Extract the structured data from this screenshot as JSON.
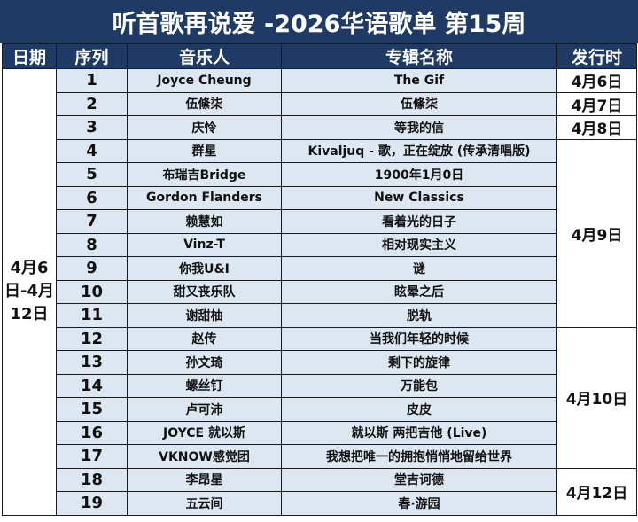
{
  "title": "听首歌再说爱 -2026华语歌单 第15周",
  "headers": {
    "date": "日期",
    "seq": "序列",
    "artist": "音乐人",
    "album": "专辑名称",
    "release": "发行时"
  },
  "week_date": "4月6日-4月12日",
  "rows": [
    {
      "seq": "1",
      "artist": "Joyce Cheung",
      "album": "The Gif"
    },
    {
      "seq": "2",
      "artist": "伍絛柒",
      "album": "伍絛柒"
    },
    {
      "seq": "3",
      "artist": "庆怜",
      "album": "等我的信"
    },
    {
      "seq": "4",
      "artist": "群星",
      "album": "Kivaljuq - 歌，正在绽放 (传承清唱版)"
    },
    {
      "seq": "5",
      "artist": "布瑞吉Bridge",
      "album": "1900年1月0日"
    },
    {
      "seq": "6",
      "artist": "Gordon Flanders",
      "album": "New Classics"
    },
    {
      "seq": "7",
      "artist": "赖慧如",
      "album": "看着光的日子"
    },
    {
      "seq": "8",
      "artist": "Vinz-T",
      "album": "相对现实主义"
    },
    {
      "seq": "9",
      "artist": "你我U&I",
      "album": "谜"
    },
    {
      "seq": "10",
      "artist": "甜又丧乐队",
      "album": "眩晕之后"
    },
    {
      "seq": "11",
      "artist": "谢甜柚",
      "album": "脱轨"
    },
    {
      "seq": "12",
      "artist": "赵传",
      "album": "当我们年轻的时候"
    },
    {
      "seq": "13",
      "artist": "孙文琦",
      "album": "剩下的旋律"
    },
    {
      "seq": "14",
      "artist": "螺丝钉",
      "album": "万能包"
    },
    {
      "seq": "15",
      "artist": "卢可沛",
      "album": "皮皮"
    },
    {
      "seq": "16",
      "artist": "JOYCE 就以斯",
      "album": "就以斯 两把吉他 (Live)"
    },
    {
      "seq": "17",
      "artist": "VKNOW感觉团",
      "album": "我想把唯一的拥抱悄悄地留给世界"
    },
    {
      "seq": "18",
      "artist": "李昂星",
      "album": "堂吉诃德"
    },
    {
      "seq": "19",
      "artist": "五云间",
      "album": "春·游园"
    }
  ],
  "release_groups": [
    {
      "label": "4月6日",
      "rows": 1
    },
    {
      "label": "4月7日",
      "rows": 1
    },
    {
      "label": "4月8日",
      "rows": 1
    },
    {
      "label": "4月9日",
      "rows": 8
    },
    {
      "label": "4月10日",
      "rows": 6
    },
    {
      "label": "4月12日",
      "rows": 2
    }
  ]
}
